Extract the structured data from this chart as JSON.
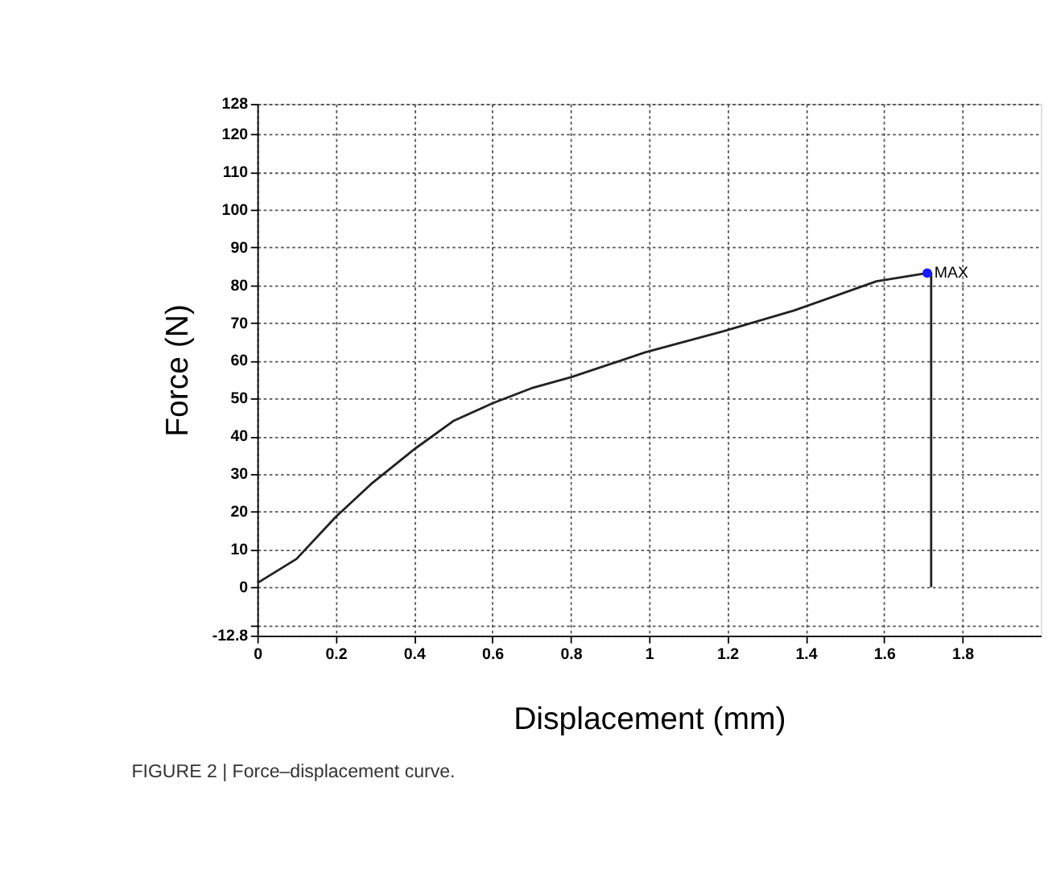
{
  "chart_data": {
    "type": "line",
    "xlabel": "Displacement (mm)",
    "ylabel": "Force (N)",
    "xlim": [
      0,
      2
    ],
    "xticks": [
      0,
      0.2,
      0.4,
      0.6,
      0.8,
      1,
      1.2,
      1.4,
      1.6,
      1.8
    ],
    "ylim": [
      -12.8,
      128
    ],
    "yticks": [
      -12.8,
      {
        "value": -10,
        "label": null
      },
      0,
      10,
      20,
      30,
      40,
      50,
      60,
      70,
      80,
      90,
      100,
      110,
      120,
      128
    ],
    "grid": true,
    "marker": "none",
    "line_style": "solid",
    "series": [
      {
        "color": "#222222",
        "x": [
          0,
          0.1,
          0.2,
          0.29,
          0.4,
          0.5,
          0.6,
          0.7,
          0.8,
          0.99,
          1.19,
          1.37,
          1.58,
          1.71,
          1.72,
          1.72
        ],
        "values": [
          1.1,
          7.5,
          18.6,
          27.3,
          36.5,
          44,
          48.7,
          52.7,
          55.6,
          62.2,
          67.8,
          73.3,
          81,
          83.2,
          83.2,
          0
        ]
      },
      {
        "type": "scatter",
        "marker": "circle",
        "color": "#1a1aff",
        "x": [
          1.71
        ],
        "values": [
          83.2
        ]
      }
    ],
    "annotations": [
      {
        "text": "MAX",
        "x": 1.71,
        "y": 83.2
      },
      "FIGURE 2 | Force–displacement curve."
    ]
  }
}
